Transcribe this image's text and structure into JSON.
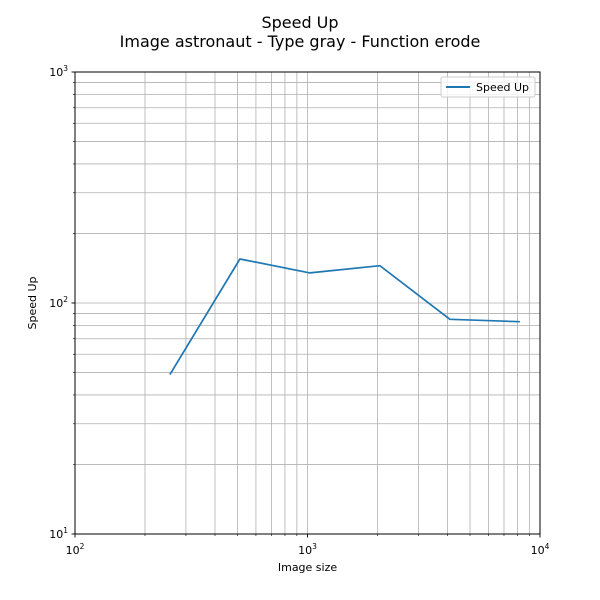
{
  "chart_data": {
    "type": "line",
    "title": "Speed Up",
    "subtitle": "Image astronaut - Type gray - Function erode",
    "xlabel": "Image size",
    "ylabel": "Speed Up",
    "xscale": "log",
    "yscale": "log",
    "xlim": [
      100,
      10000
    ],
    "ylim": [
      10,
      1000
    ],
    "grid": "both-major-and-minor",
    "legend_position": "top-right",
    "x_ticks": [
      {
        "value": 100,
        "base": "10",
        "exp": "2"
      },
      {
        "value": 1000,
        "base": "10",
        "exp": "3"
      },
      {
        "value": 10000,
        "base": "10",
        "exp": "4"
      }
    ],
    "y_ticks": [
      {
        "value": 10,
        "base": "10",
        "exp": "1"
      },
      {
        "value": 100,
        "base": "10",
        "exp": "2"
      },
      {
        "value": 1000,
        "base": "10",
        "exp": "3"
      }
    ],
    "series": [
      {
        "name": "Speed Up",
        "color": "#1f77b4",
        "x": [
          256,
          512,
          1024,
          2048,
          4096,
          8192
        ],
        "y": [
          49,
          155,
          135,
          145,
          85,
          83
        ]
      }
    ]
  }
}
